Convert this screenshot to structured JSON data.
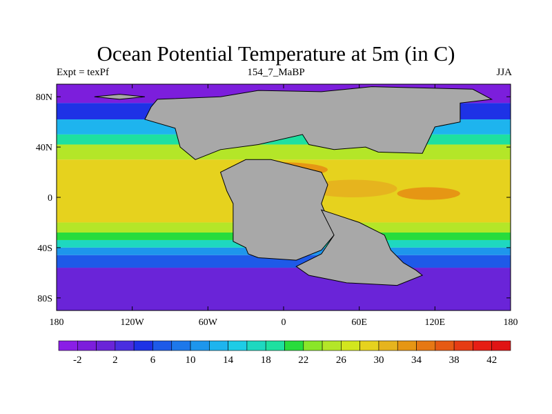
{
  "title": "Ocean Potential Temperature at 5m (in C)",
  "subtitle_left": "Expt = texPf",
  "subtitle_center": "154_7_MaBP",
  "subtitle_right": "JJA",
  "map": {
    "lon_range": [
      -180,
      180
    ],
    "lat_range": [
      -90,
      90
    ],
    "x_ticks": [
      {
        "lon": -180,
        "label": "180"
      },
      {
        "lon": -120,
        "label": "120W"
      },
      {
        "lon": -60,
        "label": "60W"
      },
      {
        "lon": 0,
        "label": "0"
      },
      {
        "lon": 60,
        "label": "60E"
      },
      {
        "lon": 120,
        "label": "120E"
      },
      {
        "lon": 180,
        "label": "180"
      }
    ],
    "y_ticks": [
      {
        "lat": 80,
        "label": "80N"
      },
      {
        "lat": 40,
        "label": "40N"
      },
      {
        "lat": 0,
        "label": "0"
      },
      {
        "lat": -40,
        "label": "40S"
      },
      {
        "lat": -80,
        "label": "80S"
      }
    ],
    "temperature_bands": [
      {
        "lat_from": 90,
        "lat_to": 75,
        "value": -1
      },
      {
        "lat_from": 75,
        "lat_to": 62,
        "value": 4
      },
      {
        "lat_from": 62,
        "lat_to": 50,
        "value": 12
      },
      {
        "lat_from": 50,
        "lat_to": 42,
        "value": 18
      },
      {
        "lat_from": 42,
        "lat_to": 30,
        "value": 24
      },
      {
        "lat_from": 30,
        "lat_to": -20,
        "value": 28
      },
      {
        "lat_from": -20,
        "lat_to": -28,
        "value": 24
      },
      {
        "lat_from": -28,
        "lat_to": -34,
        "value": 20
      },
      {
        "lat_from": -34,
        "lat_to": -40,
        "value": 16
      },
      {
        "lat_from": -40,
        "lat_to": -46,
        "value": 11
      },
      {
        "lat_from": -46,
        "lat_to": -56,
        "value": 6
      },
      {
        "lat_from": -56,
        "lat_to": -90,
        "value": 0
      }
    ],
    "warm_patches": [
      {
        "name": "tethys-warm-pool",
        "lon": [
          -45,
          35
        ],
        "lat": [
          16,
          28
        ],
        "value": 32
      },
      {
        "name": "panthalassa-warm-pool",
        "lon": [
          90,
          140
        ],
        "lat": [
          -2,
          8
        ],
        "value": 32
      },
      {
        "name": "east-tethys-warm-pool",
        "lon": [
          20,
          90
        ],
        "lat": [
          0,
          14
        ],
        "value": 31
      }
    ],
    "land_masses": [
      {
        "name": "laurasia",
        "points": [
          [
            -100,
            78
          ],
          [
            -50,
            80
          ],
          [
            -20,
            85
          ],
          [
            30,
            84
          ],
          [
            70,
            88
          ],
          [
            150,
            86
          ],
          [
            165,
            78
          ],
          [
            140,
            75
          ],
          [
            140,
            60
          ],
          [
            120,
            56
          ],
          [
            110,
            35
          ],
          [
            75,
            36
          ],
          [
            65,
            40
          ],
          [
            40,
            38
          ],
          [
            20,
            42
          ],
          [
            15,
            50
          ],
          [
            -20,
            42
          ],
          [
            -50,
            38
          ],
          [
            -70,
            30
          ],
          [
            -82,
            40
          ],
          [
            -86,
            55
          ],
          [
            -110,
            62
          ],
          [
            -105,
            72
          ]
        ]
      },
      {
        "name": "greenland-island",
        "points": [
          [
            -150,
            80
          ],
          [
            -130,
            82
          ],
          [
            -110,
            80
          ],
          [
            -130,
            78
          ]
        ]
      },
      {
        "name": "gondwana-west",
        "points": [
          [
            -50,
            20
          ],
          [
            -30,
            30
          ],
          [
            -10,
            30
          ],
          [
            10,
            25
          ],
          [
            30,
            20
          ],
          [
            35,
            10
          ],
          [
            30,
            -5
          ],
          [
            40,
            -30
          ],
          [
            30,
            -42
          ],
          [
            10,
            -50
          ],
          [
            -20,
            -48
          ],
          [
            -28,
            -45
          ],
          [
            -30,
            -40
          ],
          [
            -40,
            -35
          ],
          [
            -40,
            -20
          ],
          [
            -40,
            -5
          ],
          [
            -45,
            5
          ]
        ]
      },
      {
        "name": "gondwana-east",
        "points": [
          [
            30,
            -10
          ],
          [
            60,
            -20
          ],
          [
            80,
            -30
          ],
          [
            85,
            -42
          ],
          [
            95,
            -52
          ],
          [
            105,
            -58
          ],
          [
            110,
            -62
          ],
          [
            90,
            -70
          ],
          [
            50,
            -68
          ],
          [
            20,
            -62
          ],
          [
            10,
            -55
          ],
          [
            30,
            -45
          ],
          [
            40,
            -30
          ]
        ]
      }
    ],
    "colorbar": {
      "levels": [
        -4,
        -2,
        0,
        2,
        4,
        6,
        8,
        10,
        12,
        14,
        16,
        18,
        20,
        22,
        24,
        26,
        28,
        30,
        32,
        34,
        36,
        38,
        40,
        42,
        44
      ],
      "labels": [
        "-2",
        "2",
        "6",
        "10",
        "14",
        "18",
        "22",
        "26",
        "30",
        "34",
        "38",
        "42"
      ],
      "label_values": [
        -2,
        2,
        6,
        10,
        14,
        18,
        22,
        26,
        30,
        34,
        38,
        42
      ],
      "colors": [
        "#8a1ee6",
        "#7c1edc",
        "#6a24d8",
        "#4a2ee0",
        "#1e32e6",
        "#1e5ae8",
        "#1e78ea",
        "#1e96ec",
        "#1eb4ee",
        "#1ecce6",
        "#1ed8c0",
        "#1ee0a0",
        "#28dc3c",
        "#8ae628",
        "#b4e628",
        "#d2e61e",
        "#e6d21e",
        "#e6b41e",
        "#e69614",
        "#e67814",
        "#e65a14",
        "#e63c14",
        "#e61e14",
        "#e01414"
      ]
    },
    "land_color": "#a8a8a8"
  }
}
